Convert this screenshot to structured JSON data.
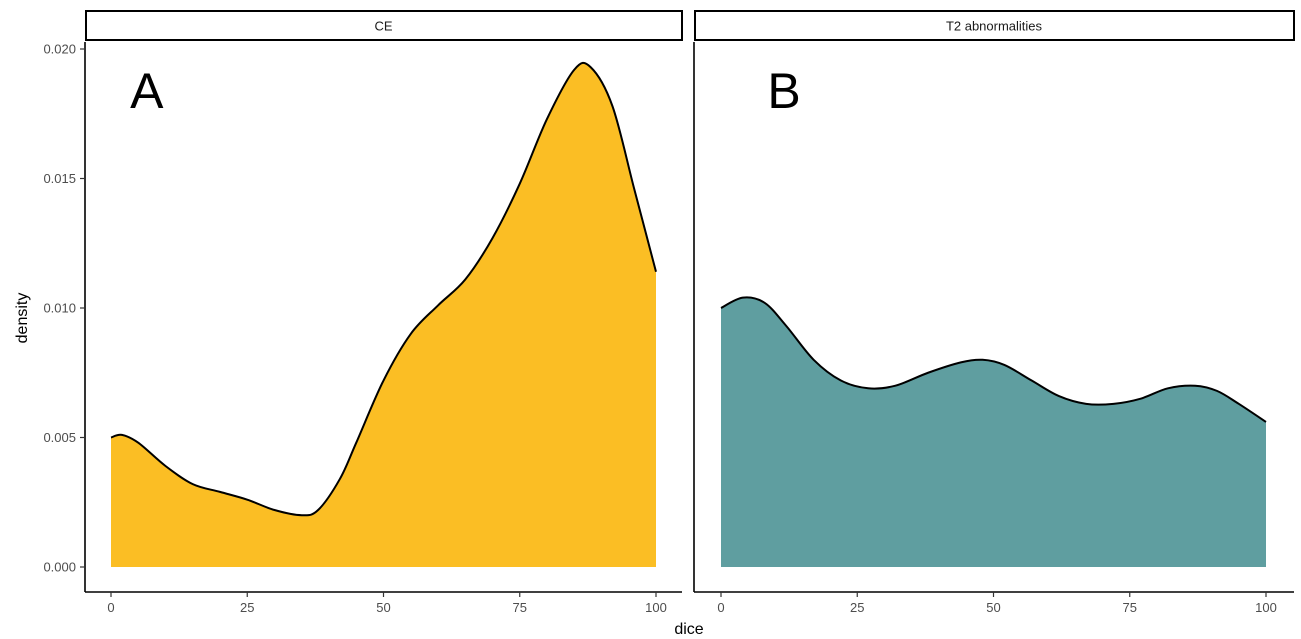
{
  "chart_data": {
    "type": "area",
    "xlabel": "dice",
    "ylabel": "density",
    "xlim": [
      0,
      100
    ],
    "ylim": [
      0,
      0.02
    ],
    "x_ticks": [
      0,
      25,
      50,
      75,
      100
    ],
    "y_ticks": [
      0.0,
      0.005,
      0.01,
      0.015,
      0.02
    ],
    "y_tick_labels": [
      "0.000",
      "0.005",
      "0.010",
      "0.015",
      "0.020"
    ],
    "x_tick_labels": [
      "0",
      "25",
      "50",
      "75",
      "100"
    ],
    "grid": false,
    "panels": [
      {
        "strip": "CE",
        "tag": "A",
        "fill": "#FBBE24",
        "x": [
          0,
          2,
          5,
          10,
          15,
          20,
          25,
          30,
          35,
          38,
          42,
          45,
          50,
          55,
          60,
          65,
          70,
          75,
          80,
          85,
          88,
          92,
          96,
          100
        ],
        "y": [
          0.005,
          0.0051,
          0.0048,
          0.0039,
          0.0032,
          0.0029,
          0.0026,
          0.0022,
          0.002,
          0.0022,
          0.0034,
          0.0048,
          0.0072,
          0.009,
          0.0101,
          0.0111,
          0.0127,
          0.0148,
          0.0173,
          0.0192,
          0.0193,
          0.0178,
          0.0146,
          0.0114
        ]
      },
      {
        "strip": "T2 abnormalities",
        "tag": "B",
        "fill": "#5F9EA0",
        "x": [
          0,
          4,
          8,
          12,
          17,
          22,
          27,
          32,
          38,
          44,
          48,
          52,
          57,
          62,
          67,
          72,
          77,
          82,
          87,
          91,
          95,
          100
        ],
        "y": [
          0.01,
          0.0104,
          0.0102,
          0.0093,
          0.008,
          0.0072,
          0.0069,
          0.007,
          0.0075,
          0.0079,
          0.008,
          0.0078,
          0.0072,
          0.0066,
          0.0063,
          0.0063,
          0.0065,
          0.0069,
          0.007,
          0.0068,
          0.0063,
          0.0056
        ]
      }
    ]
  }
}
